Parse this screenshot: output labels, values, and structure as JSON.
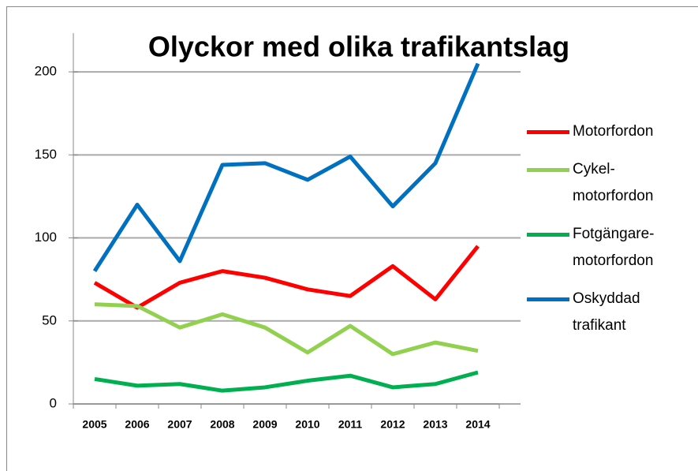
{
  "chart_data": {
    "type": "line",
    "title": "Olyckor med olika trafikantslag",
    "categories": [
      "2005",
      "2006",
      "2007",
      "2008",
      "2009",
      "2010",
      "2011",
      "2012",
      "2013",
      "2014"
    ],
    "series": [
      {
        "name": "Motorfordon",
        "color": "#ff0000",
        "values": [
          73,
          58,
          73,
          80,
          76,
          69,
          65,
          83,
          63,
          95
        ]
      },
      {
        "name": "Cykel-motorfordon",
        "color": "#92d050",
        "values": [
          60,
          59,
          46,
          54,
          46,
          31,
          47,
          30,
          37,
          32
        ]
      },
      {
        "name": "Fotgängare-motorfordon",
        "color": "#00b050",
        "values": [
          15,
          11,
          12,
          8,
          10,
          14,
          17,
          10,
          12,
          19
        ]
      },
      {
        "name": "Oskyddad trafikant",
        "color": "#0070c0",
        "values": [
          80,
          120,
          86,
          144,
          145,
          135,
          149,
          119,
          145,
          205
        ]
      }
    ],
    "ylim": [
      0,
      220
    ],
    "yticks": [
      0,
      50,
      100,
      150,
      200
    ],
    "grid": true,
    "legend": "right"
  }
}
